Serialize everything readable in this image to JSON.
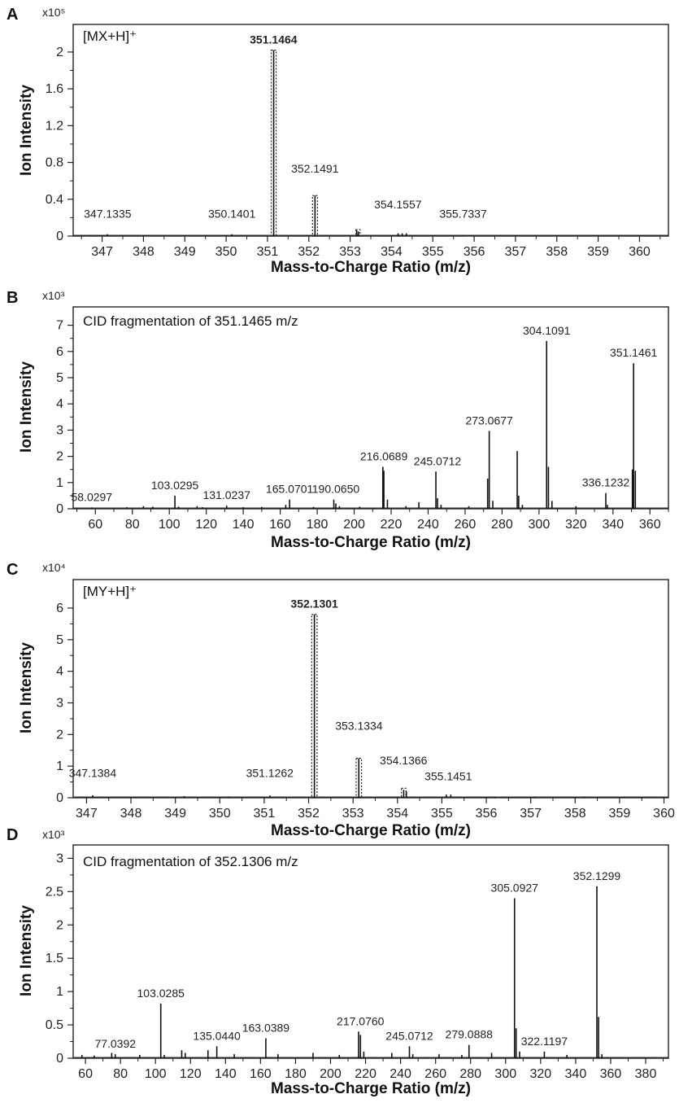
{
  "chart_data": [
    {
      "panel": "A",
      "type": "bar",
      "inset_title": "[MX+H]⁺",
      "scale": "x10⁵",
      "xlabel": "Mass-to-Charge Ratio (m/z)",
      "ylabel": "Ion Intensity",
      "xlim": [
        346.3,
        360.7
      ],
      "ylim": [
        0,
        2.3
      ],
      "xticks": [
        347,
        348,
        349,
        350,
        351,
        352,
        353,
        354,
        355,
        356,
        357,
        358,
        359,
        360
      ],
      "yticks": [
        0,
        0.4,
        0.8,
        1.2,
        1.6,
        2
      ],
      "ytick_labels": [
        "0",
        "0.4",
        "0.8",
        "1.2",
        "1.6",
        "2"
      ],
      "peaks": [
        {
          "x": 346.5,
          "y": 0.01
        },
        {
          "x": 346.7,
          "y": 0.01
        },
        {
          "x": 347.13,
          "y": 0.02
        },
        {
          "x": 350.14,
          "y": 0.02
        },
        {
          "x": 351.15,
          "y": 2.02
        },
        {
          "x": 352.15,
          "y": 0.44
        },
        {
          "x": 353.16,
          "y": 0.06
        },
        {
          "x": 353.2,
          "y": 0.05
        },
        {
          "x": 354.16,
          "y": 0.03
        },
        {
          "x": 354.26,
          "y": 0.03
        },
        {
          "x": 354.36,
          "y": 0.03
        },
        {
          "x": 355.73,
          "y": 0.01
        }
      ],
      "boxed_peaks": [
        {
          "x": 351.15,
          "y": 2.02,
          "w": 0.12
        },
        {
          "x": 352.15,
          "y": 0.44,
          "w": 0.12
        },
        {
          "x": 353.19,
          "y": 0.07,
          "w": 0.1
        }
      ],
      "labels": [
        {
          "text": "351.1464",
          "x": 351.146,
          "y": 2.02,
          "bold": true
        },
        {
          "text": "352.1491",
          "x": 352.149,
          "y": 0.62,
          "bold": false
        },
        {
          "text": "347.1335",
          "x": 347.133,
          "y": 0.13,
          "bold": false
        },
        {
          "text": "350.1401",
          "x": 350.14,
          "y": 0.13,
          "bold": false
        },
        {
          "text": "354.1557",
          "x": 354.156,
          "y": 0.23,
          "bold": false
        },
        {
          "text": "355.7337",
          "x": 355.734,
          "y": 0.13,
          "bold": false
        }
      ]
    },
    {
      "panel": "B",
      "type": "bar",
      "inset_title": "CID fragmentation of 351.1465 m/z",
      "scale": "x10³",
      "xlabel": "Mass-to-Charge Ratio (m/z)",
      "ylabel": "Ion Intensity",
      "xlim": [
        48,
        370
      ],
      "ylim": [
        0,
        7.7
      ],
      "xticks": [
        60,
        80,
        100,
        120,
        140,
        160,
        180,
        200,
        220,
        240,
        260,
        280,
        300,
        320,
        340,
        360
      ],
      "yticks": [
        0,
        1,
        2,
        3,
        4,
        5,
        6,
        7
      ],
      "ytick_labels": [
        "0",
        "1",
        "2",
        "3",
        "4",
        "5",
        "6",
        "7"
      ],
      "peaks": [
        {
          "x": 58.03,
          "y": 0.05
        },
        {
          "x": 77,
          "y": 0.06
        },
        {
          "x": 86,
          "y": 0.1
        },
        {
          "x": 91,
          "y": 0.08
        },
        {
          "x": 103.03,
          "y": 0.5
        },
        {
          "x": 105,
          "y": 0.08
        },
        {
          "x": 115,
          "y": 0.1
        },
        {
          "x": 118,
          "y": 0.06
        },
        {
          "x": 131.02,
          "y": 0.12
        },
        {
          "x": 140,
          "y": 0.06
        },
        {
          "x": 150,
          "y": 0.07
        },
        {
          "x": 163,
          "y": 0.15
        },
        {
          "x": 165.07,
          "y": 0.35
        },
        {
          "x": 178,
          "y": 0.07
        },
        {
          "x": 189,
          "y": 0.35
        },
        {
          "x": 190.07,
          "y": 0.2
        },
        {
          "x": 192,
          "y": 0.1
        },
        {
          "x": 203,
          "y": 0.08
        },
        {
          "x": 215.5,
          "y": 1.6
        },
        {
          "x": 216.07,
          "y": 1.45
        },
        {
          "x": 218,
          "y": 0.35
        },
        {
          "x": 228,
          "y": 0.1
        },
        {
          "x": 235,
          "y": 0.25
        },
        {
          "x": 244.2,
          "y": 1.42
        },
        {
          "x": 245.07,
          "y": 0.4
        },
        {
          "x": 247,
          "y": 0.15
        },
        {
          "x": 262,
          "y": 0.1
        },
        {
          "x": 272.2,
          "y": 1.15
        },
        {
          "x": 273.07,
          "y": 2.97
        },
        {
          "x": 275,
          "y": 0.3
        },
        {
          "x": 288.2,
          "y": 2.2
        },
        {
          "x": 289,
          "y": 0.5
        },
        {
          "x": 291,
          "y": 0.15
        },
        {
          "x": 304.11,
          "y": 6.4
        },
        {
          "x": 305.1,
          "y": 1.6
        },
        {
          "x": 307,
          "y": 0.3
        },
        {
          "x": 320,
          "y": 0.1
        },
        {
          "x": 336.12,
          "y": 0.6
        },
        {
          "x": 337,
          "y": 0.15
        },
        {
          "x": 350.5,
          "y": 1.5
        },
        {
          "x": 351.15,
          "y": 5.55
        },
        {
          "x": 352.1,
          "y": 1.45
        }
      ],
      "labels": [
        {
          "text": "58.0297",
          "x": 58.03,
          "y": 0.05,
          "bold": false
        },
        {
          "text": "103.0295",
          "x": 103.03,
          "y": 0.5,
          "bold": false
        },
        {
          "text": "131.0237",
          "x": 131.02,
          "y": 0.12,
          "bold": false
        },
        {
          "text": "165.0701",
          "x": 165.07,
          "y": 0.35,
          "bold": false
        },
        {
          "text": "190.0650",
          "x": 190.07,
          "y": 0.35,
          "bold": false
        },
        {
          "text": "216.0689",
          "x": 216.07,
          "y": 1.6,
          "bold": false
        },
        {
          "text": "245.0712",
          "x": 245.07,
          "y": 1.42,
          "bold": false
        },
        {
          "text": "273.0677",
          "x": 273.07,
          "y": 2.97,
          "bold": false
        },
        {
          "text": "304.1091",
          "x": 304.11,
          "y": 6.4,
          "bold": false
        },
        {
          "text": "336.1232",
          "x": 336.12,
          "y": 0.6,
          "bold": false
        },
        {
          "text": "351.1461",
          "x": 351.15,
          "y": 5.55,
          "bold": false
        }
      ]
    },
    {
      "panel": "C",
      "type": "bar",
      "inset_title": "[MY+H]⁺",
      "scale": "x10⁴",
      "xlabel": "Mass-to-Charge Ratio (m/z)",
      "ylabel": "Ion Intensity",
      "xlim": [
        346.7,
        360.1
      ],
      "ylim": [
        0,
        6.9
      ],
      "xticks": [
        347,
        348,
        349,
        350,
        351,
        352,
        353,
        354,
        355,
        356,
        357,
        358,
        359,
        360
      ],
      "yticks": [
        0,
        1,
        2,
        3,
        4,
        5,
        6
      ],
      "ytick_labels": [
        "0",
        "1",
        "2",
        "3",
        "4",
        "5",
        "6"
      ],
      "peaks": [
        {
          "x": 347.14,
          "y": 0.08
        },
        {
          "x": 348.1,
          "y": 0.03
        },
        {
          "x": 349.2,
          "y": 0.05
        },
        {
          "x": 350.2,
          "y": 0.04
        },
        {
          "x": 351.13,
          "y": 0.07
        },
        {
          "x": 352.13,
          "y": 5.8
        },
        {
          "x": 353.13,
          "y": 1.25
        },
        {
          "x": 354.14,
          "y": 0.25
        },
        {
          "x": 354.2,
          "y": 0.2
        },
        {
          "x": 355.1,
          "y": 0.1
        },
        {
          "x": 355.2,
          "y": 0.1
        },
        {
          "x": 356.2,
          "y": 0.03
        },
        {
          "x": 357.1,
          "y": 0.04
        },
        {
          "x": 358.2,
          "y": 0.04
        },
        {
          "x": 359.1,
          "y": 0.04
        }
      ],
      "boxed_peaks": [
        {
          "x": 352.13,
          "y": 5.8,
          "w": 0.12
        },
        {
          "x": 353.13,
          "y": 1.25,
          "w": 0.12
        },
        {
          "x": 354.14,
          "y": 0.3,
          "w": 0.1
        }
      ],
      "labels": [
        {
          "text": "352.1301",
          "x": 352.13,
          "y": 5.8,
          "bold": true
        },
        {
          "text": "353.1334",
          "x": 353.133,
          "y": 1.95,
          "bold": false
        },
        {
          "text": "347.1384",
          "x": 347.138,
          "y": 0.45,
          "bold": false
        },
        {
          "text": "351.1262",
          "x": 351.126,
          "y": 0.45,
          "bold": false
        },
        {
          "text": "354.1366",
          "x": 354.137,
          "y": 0.85,
          "bold": false
        },
        {
          "text": "355.1451",
          "x": 355.145,
          "y": 0.35,
          "bold": false
        }
      ]
    },
    {
      "panel": "D",
      "type": "bar",
      "inset_title": "CID fragmentation of 352.1306 m/z",
      "scale": "x10³",
      "xlabel": "Mass-to-Charge Ratio (m/z)",
      "ylabel": "Ion Intensity",
      "xlim": [
        53,
        393
      ],
      "ylim": [
        0,
        3.2
      ],
      "xticks": [
        60,
        80,
        100,
        120,
        140,
        160,
        180,
        200,
        220,
        240,
        260,
        280,
        300,
        320,
        340,
        360,
        380
      ],
      "yticks": [
        0,
        0.5,
        1,
        1.5,
        2,
        2.5,
        3
      ],
      "ytick_labels": [
        "0",
        "0.5",
        "1",
        "1.5",
        "2",
        "2.5",
        "3"
      ],
      "peaks": [
        {
          "x": 58,
          "y": 0.05
        },
        {
          "x": 65,
          "y": 0.04
        },
        {
          "x": 75,
          "y": 0.08
        },
        {
          "x": 77.04,
          "y": 0.06
        },
        {
          "x": 91,
          "y": 0.05
        },
        {
          "x": 103.03,
          "y": 0.82
        },
        {
          "x": 105,
          "y": 0.05
        },
        {
          "x": 115,
          "y": 0.12
        },
        {
          "x": 117,
          "y": 0.08
        },
        {
          "x": 130,
          "y": 0.12
        },
        {
          "x": 135.04,
          "y": 0.18
        },
        {
          "x": 145,
          "y": 0.06
        },
        {
          "x": 163.04,
          "y": 0.3
        },
        {
          "x": 170,
          "y": 0.06
        },
        {
          "x": 190,
          "y": 0.08
        },
        {
          "x": 205,
          "y": 0.05
        },
        {
          "x": 216,
          "y": 0.4
        },
        {
          "x": 217.08,
          "y": 0.35
        },
        {
          "x": 219,
          "y": 0.1
        },
        {
          "x": 235,
          "y": 0.08
        },
        {
          "x": 245.07,
          "y": 0.18
        },
        {
          "x": 247,
          "y": 0.06
        },
        {
          "x": 262,
          "y": 0.06
        },
        {
          "x": 275,
          "y": 0.05
        },
        {
          "x": 279.09,
          "y": 0.2
        },
        {
          "x": 292,
          "y": 0.08
        },
        {
          "x": 305.09,
          "y": 2.4
        },
        {
          "x": 306,
          "y": 0.45
        },
        {
          "x": 308,
          "y": 0.1
        },
        {
          "x": 322.12,
          "y": 0.1
        },
        {
          "x": 335,
          "y": 0.05
        },
        {
          "x": 352.13,
          "y": 2.58
        },
        {
          "x": 353.1,
          "y": 0.62
        },
        {
          "x": 355,
          "y": 0.06
        }
      ],
      "labels": [
        {
          "text": "77.0392",
          "x": 77.04,
          "y": 0.06,
          "bold": false
        },
        {
          "text": "103.0285",
          "x": 103.03,
          "y": 0.82,
          "bold": false
        },
        {
          "text": "135.0440",
          "x": 135.04,
          "y": 0.18,
          "bold": false
        },
        {
          "text": "163.0389",
          "x": 163.04,
          "y": 0.3,
          "bold": false
        },
        {
          "text": "217.0760",
          "x": 217.08,
          "y": 0.4,
          "bold": false
        },
        {
          "text": "245.0712",
          "x": 245.07,
          "y": 0.18,
          "bold": false
        },
        {
          "text": "279.0888",
          "x": 279.09,
          "y": 0.2,
          "bold": false
        },
        {
          "text": "305.0927",
          "x": 305.09,
          "y": 2.4,
          "bold": false
        },
        {
          "text": "322.1197",
          "x": 322.12,
          "y": 0.1,
          "bold": false
        },
        {
          "text": "352.1299",
          "x": 352.13,
          "y": 2.58,
          "bold": false
        }
      ]
    }
  ]
}
